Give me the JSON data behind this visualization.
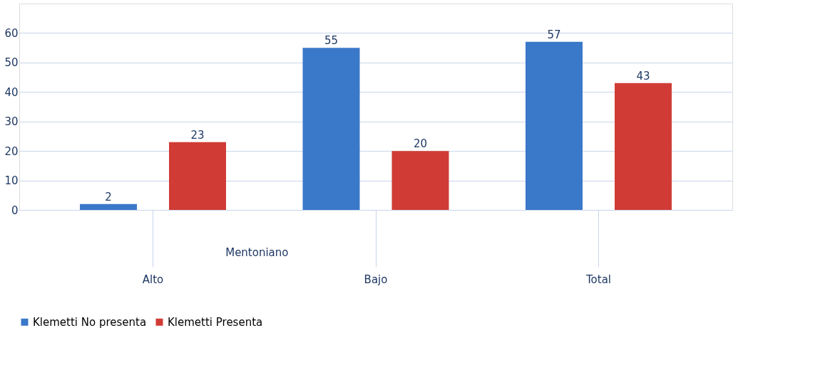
{
  "chart_data": {
    "type": "bar",
    "categories": [
      "Alto",
      "Bajo",
      "Total"
    ],
    "series": [
      {
        "name": "Klemetti No presenta",
        "color": "#3a78c9",
        "values": [
          2,
          55,
          57
        ]
      },
      {
        "name": "Klemetti Presenta",
        "color": "#d03c35",
        "values": [
          23,
          20,
          43
        ]
      }
    ],
    "ylim": [
      0,
      70
    ],
    "yticks": [
      0,
      10,
      20,
      30,
      40,
      50,
      60
    ],
    "grid": "y",
    "legend": "bottom",
    "data_labels": true,
    "annotations": [
      "Mentoniano"
    ]
  }
}
